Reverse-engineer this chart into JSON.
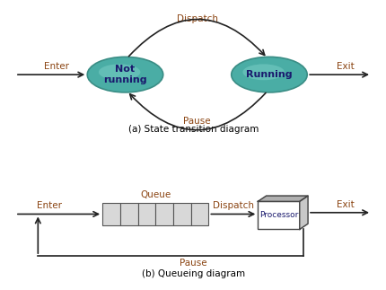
{
  "bg_color": "#ffffff",
  "ellipse_color_center": "#5bbdb5",
  "ellipse_color": "#4aada5",
  "ellipse_edge": "#3a8d85",
  "text_color_label": "#8B4513",
  "text_color_state": "#1a1a6e",
  "text_color_caption": "#000000",
  "text_color_arrow_label": "#8B4010",
  "arrow_color": "#222222",
  "queue_fill": "#d8d8d8",
  "queue_edge": "#555555",
  "processor_main_fill": "#ffffff",
  "processor_top_fill": "#b0b0b0",
  "processor_right_fill": "#c8c8c8",
  "processor_edge": "#444444",
  "state1_label": "Not\nrunning",
  "state2_label": "Running",
  "enter_label": "Enter",
  "exit_label": "Exit",
  "dispatch_label": "Dispatch",
  "pause_label": "Pause",
  "caption_a": "(a) State transition diagram",
  "caption_b": "(b) Queueing diagram",
  "queue_label": "Queue",
  "dispatch_b_label": "Dispatch",
  "pause_b_label": "Pause",
  "enter_b_label": "Enter",
  "exit_b_label": "Exit",
  "processor_label": "Processor"
}
